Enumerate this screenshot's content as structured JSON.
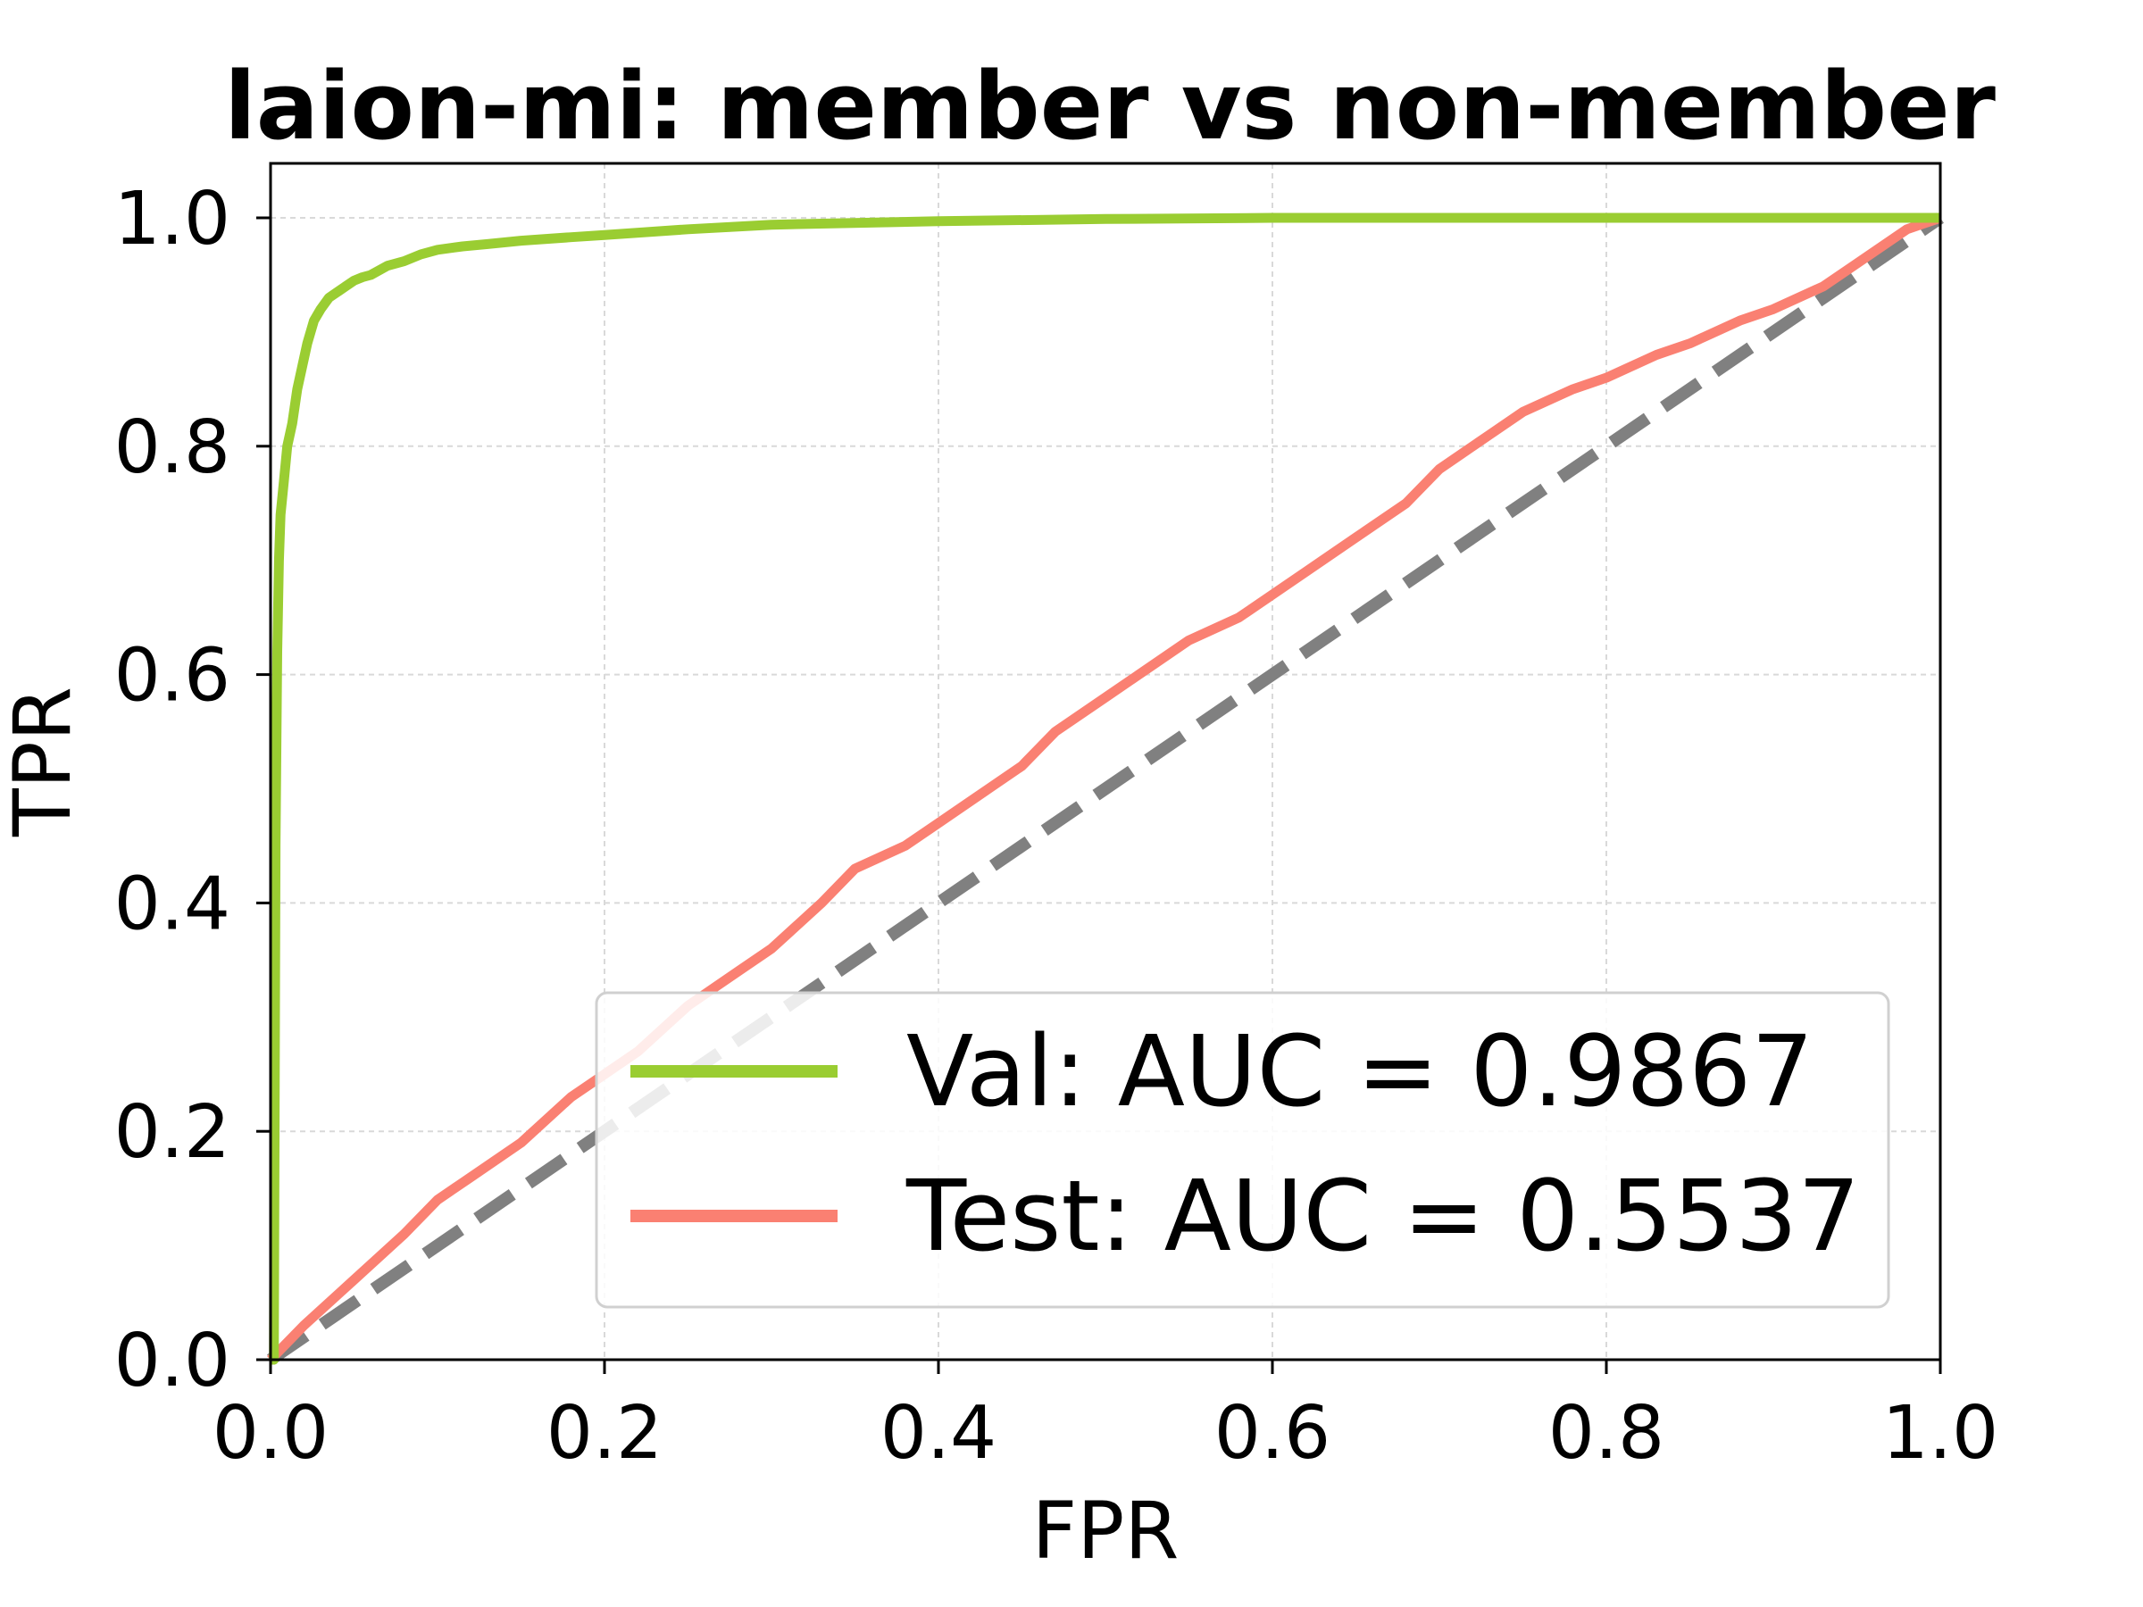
{
  "chart_data": {
    "type": "line",
    "title": "laion-mi: member vs non-member",
    "xlabel": "FPR",
    "ylabel": "TPR",
    "xlim": [
      0.0,
      1.0
    ],
    "ylim": [
      0.0,
      1.05
    ],
    "xticks": [
      "0.0",
      "0.2",
      "0.4",
      "0.6",
      "0.8",
      "1.0"
    ],
    "yticks": [
      "0.0",
      "0.2",
      "0.4",
      "0.6",
      "0.8",
      "1.0"
    ],
    "grid": true,
    "legend_position": "lower right",
    "series": [
      {
        "name": "Val: AUC = 0.9867",
        "color": "#9acd32",
        "x": [
          0.0,
          0.002,
          0.003,
          0.004,
          0.005,
          0.006,
          0.008,
          0.01,
          0.013,
          0.016,
          0.019,
          0.022,
          0.026,
          0.03,
          0.035,
          0.04,
          0.045,
          0.05,
          0.055,
          0.06,
          0.07,
          0.08,
          0.09,
          0.1,
          0.115,
          0.13,
          0.15,
          0.18,
          0.2,
          0.25,
          0.3,
          0.4,
          0.5,
          0.6,
          0.8,
          1.0
        ],
        "y": [
          0.0,
          0.0,
          0.45,
          0.62,
          0.7,
          0.74,
          0.77,
          0.8,
          0.82,
          0.85,
          0.87,
          0.89,
          0.91,
          0.92,
          0.93,
          0.935,
          0.94,
          0.945,
          0.948,
          0.95,
          0.958,
          0.962,
          0.968,
          0.972,
          0.975,
          0.977,
          0.98,
          0.983,
          0.985,
          0.99,
          0.994,
          0.997,
          0.999,
          1.0,
          1.0,
          1.0
        ]
      },
      {
        "name": "Test: AUC = 0.5537",
        "color": "#fa8072",
        "x": [
          0.0,
          0.02,
          0.05,
          0.08,
          0.1,
          0.12,
          0.15,
          0.18,
          0.2,
          0.22,
          0.25,
          0.28,
          0.3,
          0.33,
          0.35,
          0.38,
          0.4,
          0.43,
          0.45,
          0.47,
          0.5,
          0.53,
          0.55,
          0.58,
          0.6,
          0.63,
          0.65,
          0.68,
          0.7,
          0.73,
          0.75,
          0.78,
          0.8,
          0.83,
          0.85,
          0.88,
          0.9,
          0.93,
          0.95,
          0.98,
          1.0
        ],
        "y": [
          0.0,
          0.03,
          0.07,
          0.11,
          0.14,
          0.16,
          0.19,
          0.23,
          0.25,
          0.27,
          0.31,
          0.34,
          0.36,
          0.4,
          0.43,
          0.45,
          0.47,
          0.5,
          0.52,
          0.55,
          0.58,
          0.61,
          0.63,
          0.65,
          0.67,
          0.7,
          0.72,
          0.75,
          0.78,
          0.81,
          0.83,
          0.85,
          0.86,
          0.88,
          0.89,
          0.91,
          0.92,
          0.94,
          0.96,
          0.99,
          1.0
        ]
      },
      {
        "name": "",
        "color": "#808080",
        "dashed": true,
        "x": [
          0.0,
          1.0
        ],
        "y": [
          0.0,
          1.0
        ]
      }
    ]
  }
}
